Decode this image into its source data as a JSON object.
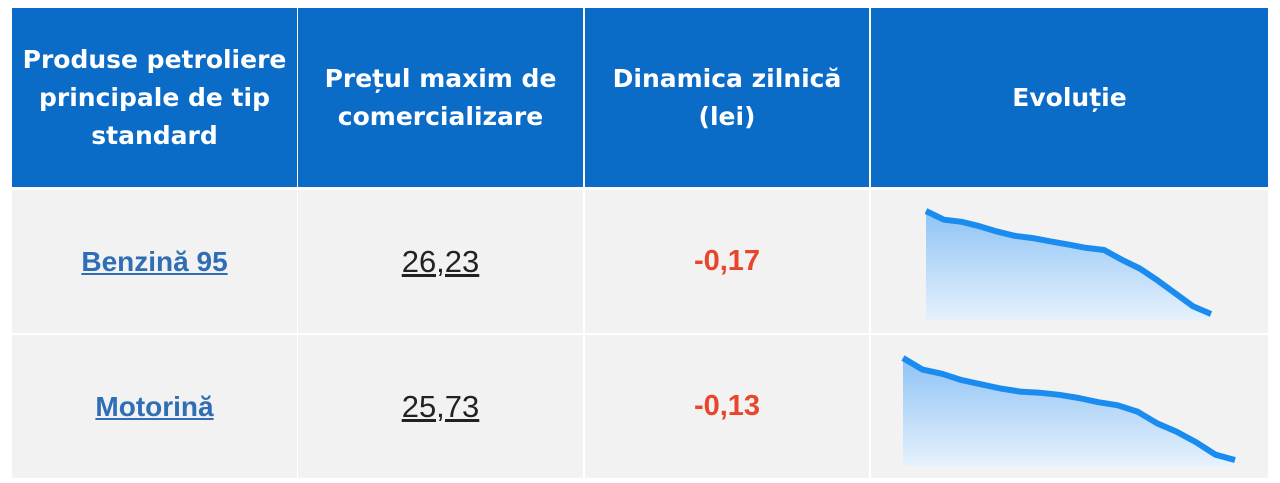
{
  "table": {
    "headers": [
      "Produse petroliere principale de tip standard",
      "Prețul maxim de comercializare",
      "Dinamica zilnică (lei)",
      "Evoluție"
    ],
    "rows": [
      {
        "product": "Benzină 95",
        "price": "26,23",
        "change": "-0,17",
        "evolution": [
          100,
          92,
          90,
          86,
          81,
          77,
          75,
          72,
          69,
          66,
          64,
          55,
          47,
          36,
          24,
          12,
          5
        ]
      },
      {
        "product": "Motorină",
        "price": "25,73",
        "change": "-0,13",
        "evolution": [
          100,
          89,
          85,
          79,
          75,
          71,
          68,
          67,
          65,
          62,
          58,
          55,
          49,
          38,
          30,
          20,
          8,
          3
        ]
      }
    ]
  }
}
